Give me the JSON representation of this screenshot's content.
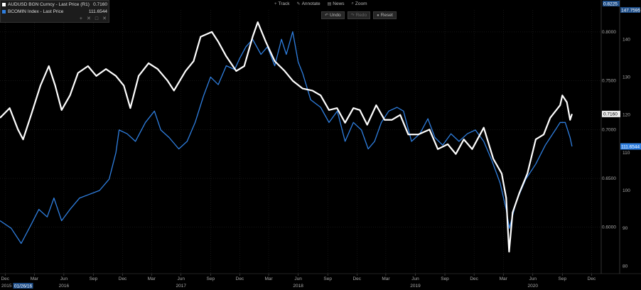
{
  "legend": {
    "series1": {
      "name": "AUDUSD BGN Curncy - Last Price (R1)",
      "value": "0.7160",
      "color": "#ffffff"
    },
    "series2": {
      "name": "BCOMIN Index - Last Price",
      "value": "111.6544",
      "color": "#2f7fe0"
    },
    "controls": [
      "+",
      "✕",
      "□",
      "✕"
    ]
  },
  "toolbar": {
    "track": "Track",
    "annotate": "Annotate",
    "news": "News",
    "zoom": "Zoom",
    "undo": "Undo",
    "redo": "Redo",
    "reset": "Reset"
  },
  "chart_data": {
    "type": "line",
    "x_range": [
      "2015-11-15",
      "2020-12-31"
    ],
    "right_axis_r1": {
      "ticks": [
        "0.8000",
        "0.7500",
        "0.7000",
        "0.6500",
        "0.6000"
      ],
      "range": [
        0.5525,
        0.8225
      ],
      "top_label": "0.8225"
    },
    "right_axis_r2": {
      "ticks": [
        "140",
        "130",
        "120",
        "110",
        "100",
        "90",
        "80"
      ],
      "range": [
        78,
        147.7595
      ],
      "top_label": "147.7595"
    },
    "x_month_ticks": [
      "Dec",
      "Mar",
      "Jun",
      "Sep",
      "Dec",
      "Mar",
      "Jun",
      "Sep",
      "Dec",
      "Mar",
      "Jun",
      "Sep",
      "Dec",
      "Mar",
      "Jun",
      "Sep",
      "Dec",
      "Mar",
      "Jun",
      "Sep",
      "Dec"
    ],
    "x_year_labels": [
      "2015",
      "2016",
      "2017",
      "2018",
      "2019",
      "2020"
    ],
    "cursor_date_label": "01/26/16",
    "last_value_tags": {
      "r1": "0.7160",
      "r2": "111.6544"
    },
    "series": [
      {
        "name": "AUDUSD BGN Curncy - Last Price (R1)",
        "axis": "r1",
        "points": [
          [
            "2015-11-15",
            0.712
          ],
          [
            "2015-12-15",
            0.722
          ],
          [
            "2016-01-10",
            0.7
          ],
          [
            "2016-01-26",
            0.69
          ],
          [
            "2016-02-20",
            0.715
          ],
          [
            "2016-03-20",
            0.745
          ],
          [
            "2016-04-15",
            0.765
          ],
          [
            "2016-05-05",
            0.745
          ],
          [
            "2016-05-25",
            0.72
          ],
          [
            "2016-06-20",
            0.735
          ],
          [
            "2016-07-15",
            0.758
          ],
          [
            "2016-08-15",
            0.765
          ],
          [
            "2016-09-10",
            0.755
          ],
          [
            "2016-10-10",
            0.762
          ],
          [
            "2016-11-10",
            0.755
          ],
          [
            "2016-12-05",
            0.745
          ],
          [
            "2016-12-25",
            0.722
          ],
          [
            "2017-01-20",
            0.755
          ],
          [
            "2017-02-20",
            0.768
          ],
          [
            "2017-03-20",
            0.762
          ],
          [
            "2017-04-20",
            0.75
          ],
          [
            "2017-05-10",
            0.74
          ],
          [
            "2017-06-15",
            0.76
          ],
          [
            "2017-07-10",
            0.77
          ],
          [
            "2017-08-01",
            0.795
          ],
          [
            "2017-09-05",
            0.8
          ],
          [
            "2017-09-25",
            0.79
          ],
          [
            "2017-10-20",
            0.775
          ],
          [
            "2017-11-20",
            0.76
          ],
          [
            "2017-12-15",
            0.765
          ],
          [
            "2018-01-10",
            0.795
          ],
          [
            "2018-01-26",
            0.81
          ],
          [
            "2018-02-20",
            0.79
          ],
          [
            "2018-03-20",
            0.77
          ],
          [
            "2018-04-20",
            0.76
          ],
          [
            "2018-05-15",
            0.75
          ],
          [
            "2018-06-15",
            0.742
          ],
          [
            "2018-07-15",
            0.74
          ],
          [
            "2018-08-10",
            0.735
          ],
          [
            "2018-09-05",
            0.72
          ],
          [
            "2018-09-30",
            0.722
          ],
          [
            "2018-10-25",
            0.707
          ],
          [
            "2018-11-20",
            0.722
          ],
          [
            "2018-12-10",
            0.72
          ],
          [
            "2019-01-02",
            0.705
          ],
          [
            "2019-01-30",
            0.725
          ],
          [
            "2019-02-25",
            0.71
          ],
          [
            "2019-03-20",
            0.71
          ],
          [
            "2019-04-15",
            0.715
          ],
          [
            "2019-05-10",
            0.695
          ],
          [
            "2019-06-10",
            0.695
          ],
          [
            "2019-07-15",
            0.7
          ],
          [
            "2019-08-10",
            0.68
          ],
          [
            "2019-09-10",
            0.685
          ],
          [
            "2019-10-05",
            0.675
          ],
          [
            "2019-10-30",
            0.69
          ],
          [
            "2019-11-25",
            0.68
          ],
          [
            "2019-12-31",
            0.702
          ],
          [
            "2020-01-30",
            0.67
          ],
          [
            "2020-02-25",
            0.655
          ],
          [
            "2020-03-10",
            0.63
          ],
          [
            "2020-03-19",
            0.575
          ],
          [
            "2020-03-30",
            0.615
          ],
          [
            "2020-04-20",
            0.635
          ],
          [
            "2020-05-15",
            0.655
          ],
          [
            "2020-06-10",
            0.69
          ],
          [
            "2020-07-05",
            0.695
          ],
          [
            "2020-07-25",
            0.712
          ],
          [
            "2020-08-25",
            0.725
          ],
          [
            "2020-09-01",
            0.735
          ],
          [
            "2020-09-15",
            0.728
          ],
          [
            "2020-09-25",
            0.71
          ],
          [
            "2020-10-01",
            0.716
          ]
        ]
      },
      {
        "name": "BCOMIN Index - Last Price",
        "axis": "r2",
        "points": [
          [
            "2015-11-15",
            92
          ],
          [
            "2015-12-20",
            90
          ],
          [
            "2016-01-20",
            86
          ],
          [
            "2016-02-20",
            91
          ],
          [
            "2016-03-15",
            95
          ],
          [
            "2016-04-10",
            93
          ],
          [
            "2016-05-01",
            98
          ],
          [
            "2016-05-25",
            92
          ],
          [
            "2016-06-20",
            95
          ],
          [
            "2016-07-20",
            98
          ],
          [
            "2016-08-20",
            99
          ],
          [
            "2016-09-20",
            100
          ],
          [
            "2016-10-20",
            103
          ],
          [
            "2016-11-10",
            110
          ],
          [
            "2016-11-20",
            116
          ],
          [
            "2016-12-15",
            115
          ],
          [
            "2017-01-10",
            113
          ],
          [
            "2017-02-10",
            118
          ],
          [
            "2017-03-10",
            121
          ],
          [
            "2017-03-30",
            116
          ],
          [
            "2017-04-25",
            114
          ],
          [
            "2017-05-25",
            111
          ],
          [
            "2017-06-20",
            113
          ],
          [
            "2017-07-15",
            118
          ],
          [
            "2017-08-10",
            125
          ],
          [
            "2017-09-01",
            130
          ],
          [
            "2017-09-25",
            128
          ],
          [
            "2017-10-20",
            133
          ],
          [
            "2017-11-15",
            132
          ],
          [
            "2017-12-01",
            135
          ],
          [
            "2017-12-20",
            138
          ],
          [
            "2018-01-10",
            140
          ],
          [
            "2018-02-05",
            136
          ],
          [
            "2018-02-25",
            138
          ],
          [
            "2018-03-20",
            133
          ],
          [
            "2018-04-10",
            140
          ],
          [
            "2018-04-25",
            136
          ],
          [
            "2018-05-15",
            142
          ],
          [
            "2018-06-01",
            134
          ],
          [
            "2018-06-15",
            131
          ],
          [
            "2018-07-10",
            124
          ],
          [
            "2018-08-10",
            122
          ],
          [
            "2018-09-05",
            118
          ],
          [
            "2018-10-01",
            121
          ],
          [
            "2018-10-25",
            113
          ],
          [
            "2018-11-20",
            118
          ],
          [
            "2018-12-15",
            116
          ],
          [
            "2019-01-05",
            111
          ],
          [
            "2019-01-25",
            113
          ],
          [
            "2019-02-15",
            118
          ],
          [
            "2019-03-10",
            121
          ],
          [
            "2019-04-05",
            122
          ],
          [
            "2019-04-25",
            121
          ],
          [
            "2019-05-20",
            113
          ],
          [
            "2019-06-15",
            115
          ],
          [
            "2019-07-10",
            119
          ],
          [
            "2019-08-01",
            114
          ],
          [
            "2019-08-25",
            112
          ],
          [
            "2019-09-20",
            115
          ],
          [
            "2019-10-15",
            113
          ],
          [
            "2019-11-10",
            115
          ],
          [
            "2019-12-05",
            116
          ],
          [
            "2019-12-31",
            113
          ],
          [
            "2020-01-25",
            108
          ],
          [
            "2020-02-20",
            102
          ],
          [
            "2020-03-10",
            95
          ],
          [
            "2020-03-20",
            90
          ],
          [
            "2020-04-10",
            97
          ],
          [
            "2020-05-10",
            103
          ],
          [
            "2020-06-10",
            107
          ],
          [
            "2020-07-10",
            112
          ],
          [
            "2020-08-10",
            116
          ],
          [
            "2020-08-25",
            118
          ],
          [
            "2020-09-10",
            118
          ],
          [
            "2020-09-25",
            114
          ],
          [
            "2020-10-01",
            111.65
          ]
        ]
      }
    ]
  }
}
